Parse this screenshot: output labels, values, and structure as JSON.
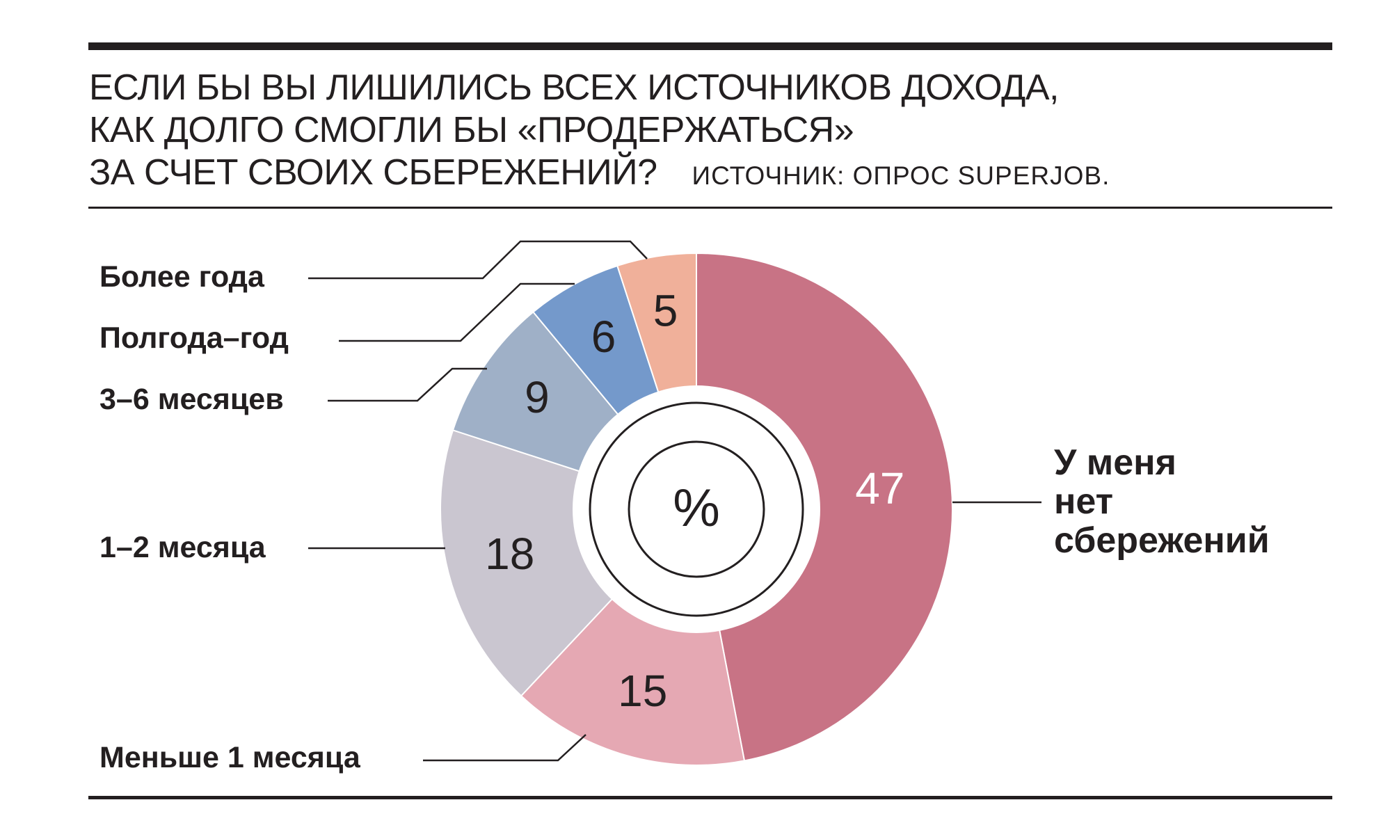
{
  "chart_data": {
    "type": "pie",
    "title_lines": [
      "ЕСЛИ БЫ ВЫ ЛИШИЛИСЬ ВСЕХ ИСТОЧНИКОВ ДОХОДА,",
      "КАК ДОЛГО СМОГЛИ БЫ «ПРОДЕРЖАТЬСЯ»",
      "ЗА СЧЕТ СВОИХ СБЕРЕЖЕНИЙ?"
    ],
    "source": "ИСТОЧНИК: ОПРОС SUPERJOB.",
    "center_label": "%",
    "categories": [
      "Более года",
      "Полгода–год",
      "3–6 месяцев",
      "1–2 месяца",
      "Меньше 1 месяца"
    ],
    "big_category_lines": [
      "У меня",
      "нет",
      "сбережений"
    ],
    "slices": [
      {
        "value": 47,
        "color": "#c87385"
      },
      {
        "value": 15,
        "color": "#e5a8b3"
      },
      {
        "value": 18,
        "color": "#cac6d0"
      },
      {
        "value": 9,
        "color": "#9fb0c7"
      },
      {
        "value": 6,
        "color": "#7499cb"
      },
      {
        "value": 5,
        "color": "#f0b09a"
      }
    ],
    "value_text_colors": [
      "#ffffff",
      "#231f20",
      "#231f20",
      "#231f20",
      "#231f20",
      "#231f20"
    ],
    "legend": "leader-lines"
  }
}
